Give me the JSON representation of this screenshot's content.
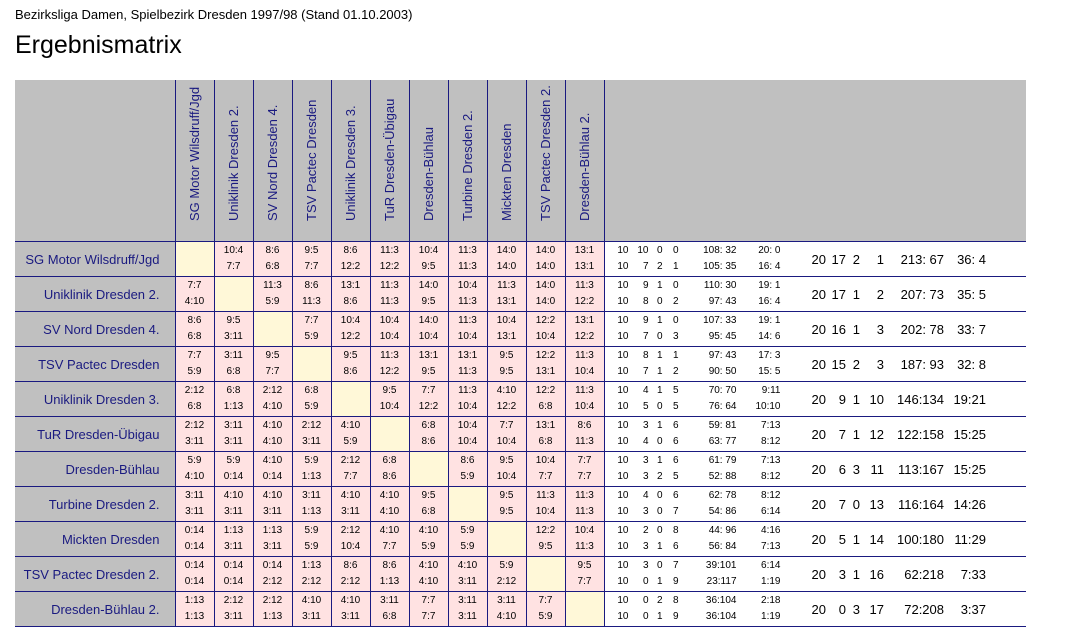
{
  "header": {
    "subtitle": "Bezirksliga Damen, Spielbezirk Dresden 1997/98 (Stand 01.10.2003)",
    "title": "Ergebnismatrix"
  },
  "columns": [
    "SG Motor Wilsdruff/Jgd",
    "Uniklinik Dresden 2.",
    "SV Nord Dresden 4.",
    "TSV Pactec Dresden",
    "Uniklinik Dresden 3.",
    "TuR Dresden-Übigau",
    "Dresden-Bühlau",
    "Turbine Dresden 2.",
    "Mickten Dresden",
    "TSV Pactec Dresden 2.",
    "Dresden-Bühlau 2."
  ],
  "colors": {
    "header_bg": "#c0c0c0",
    "team_text": "#1a1a80",
    "home_away_cell": "#ffe2e2",
    "diagonal_cell": "#fff8d8"
  },
  "rows": [
    {
      "team": "SG Motor Wilsdruff/Jgd",
      "cells": [
        [
          "",
          ""
        ],
        [
          "10:4",
          "7:7"
        ],
        [
          "8:6",
          "6:8"
        ],
        [
          "9:5",
          "7:7"
        ],
        [
          "8:6",
          "12:2"
        ],
        [
          "11:3",
          "12:2"
        ],
        [
          "10:4",
          "9:5"
        ],
        [
          "11:3",
          "11:3"
        ],
        [
          "14:0",
          "14:0"
        ],
        [
          "14:0",
          "14:0"
        ],
        [
          "13:1",
          "13:1"
        ]
      ],
      "split": [
        [
          "10",
          "10",
          "0",
          "0",
          "108: 32",
          "20: 0"
        ],
        [
          "10",
          "7",
          "2",
          "1",
          "105: 35",
          "16: 4"
        ]
      ],
      "total": [
        "20",
        "17",
        "2",
        "1",
        "213: 67",
        "36: 4"
      ]
    },
    {
      "team": "Uniklinik Dresden 2.",
      "cells": [
        [
          "7:7",
          "4:10"
        ],
        [
          "",
          ""
        ],
        [
          "11:3",
          "5:9"
        ],
        [
          "8:6",
          "11:3"
        ],
        [
          "13:1",
          "8:6"
        ],
        [
          "11:3",
          "11:3"
        ],
        [
          "14:0",
          "9:5"
        ],
        [
          "10:4",
          "11:3"
        ],
        [
          "11:3",
          "13:1"
        ],
        [
          "14:0",
          "14:0"
        ],
        [
          "11:3",
          "12:2"
        ]
      ],
      "split": [
        [
          "10",
          "9",
          "1",
          "0",
          "110: 30",
          "19: 1"
        ],
        [
          "10",
          "8",
          "0",
          "2",
          "97: 43",
          "16: 4"
        ]
      ],
      "total": [
        "20",
        "17",
        "1",
        "2",
        "207: 73",
        "35: 5"
      ]
    },
    {
      "team": "SV Nord Dresden 4.",
      "cells": [
        [
          "8:6",
          "6:8"
        ],
        [
          "9:5",
          "3:11"
        ],
        [
          "",
          ""
        ],
        [
          "7:7",
          "5:9"
        ],
        [
          "10:4",
          "12:2"
        ],
        [
          "10:4",
          "10:4"
        ],
        [
          "14:0",
          "10:4"
        ],
        [
          "11:3",
          "10:4"
        ],
        [
          "10:4",
          "13:1"
        ],
        [
          "12:2",
          "10:4"
        ],
        [
          "13:1",
          "12:2"
        ]
      ],
      "split": [
        [
          "10",
          "9",
          "1",
          "0",
          "107: 33",
          "19: 1"
        ],
        [
          "10",
          "7",
          "0",
          "3",
          "95: 45",
          "14: 6"
        ]
      ],
      "total": [
        "20",
        "16",
        "1",
        "3",
        "202: 78",
        "33: 7"
      ]
    },
    {
      "team": "TSV Pactec Dresden",
      "cells": [
        [
          "7:7",
          "5:9"
        ],
        [
          "3:11",
          "6:8"
        ],
        [
          "9:5",
          "7:7"
        ],
        [
          "",
          ""
        ],
        [
          "9:5",
          "8:6"
        ],
        [
          "11:3",
          "12:2"
        ],
        [
          "13:1",
          "9:5"
        ],
        [
          "13:1",
          "11:3"
        ],
        [
          "9:5",
          "9:5"
        ],
        [
          "12:2",
          "13:1"
        ],
        [
          "11:3",
          "10:4"
        ]
      ],
      "split": [
        [
          "10",
          "8",
          "1",
          "1",
          "97: 43",
          "17: 3"
        ],
        [
          "10",
          "7",
          "1",
          "2",
          "90: 50",
          "15: 5"
        ]
      ],
      "total": [
        "20",
        "15",
        "2",
        "3",
        "187: 93",
        "32: 8"
      ]
    },
    {
      "team": "Uniklinik Dresden 3.",
      "cells": [
        [
          "2:12",
          "6:8"
        ],
        [
          "6:8",
          "1:13"
        ],
        [
          "2:12",
          "4:10"
        ],
        [
          "6:8",
          "5:9"
        ],
        [
          "",
          ""
        ],
        [
          "9:5",
          "10:4"
        ],
        [
          "7:7",
          "12:2"
        ],
        [
          "11:3",
          "10:4"
        ],
        [
          "4:10",
          "12:2"
        ],
        [
          "12:2",
          "6:8"
        ],
        [
          "11:3",
          "10:4"
        ]
      ],
      "split": [
        [
          "10",
          "4",
          "1",
          "5",
          "70: 70",
          "9:11"
        ],
        [
          "10",
          "5",
          "0",
          "5",
          "76: 64",
          "10:10"
        ]
      ],
      "total": [
        "20",
        "9",
        "1",
        "10",
        "146:134",
        "19:21"
      ]
    },
    {
      "team": "TuR Dresden-Übigau",
      "cells": [
        [
          "2:12",
          "3:11"
        ],
        [
          "3:11",
          "3:11"
        ],
        [
          "4:10",
          "4:10"
        ],
        [
          "2:12",
          "3:11"
        ],
        [
          "4:10",
          "5:9"
        ],
        [
          "",
          ""
        ],
        [
          "6:8",
          "8:6"
        ],
        [
          "10:4",
          "10:4"
        ],
        [
          "7:7",
          "10:4"
        ],
        [
          "13:1",
          "6:8"
        ],
        [
          "8:6",
          "11:3"
        ]
      ],
      "split": [
        [
          "10",
          "3",
          "1",
          "6",
          "59: 81",
          "7:13"
        ],
        [
          "10",
          "4",
          "0",
          "6",
          "63: 77",
          "8:12"
        ]
      ],
      "total": [
        "20",
        "7",
        "1",
        "12",
        "122:158",
        "15:25"
      ]
    },
    {
      "team": "Dresden-Bühlau",
      "cells": [
        [
          "5:9",
          "4:10"
        ],
        [
          "5:9",
          "0:14"
        ],
        [
          "4:10",
          "0:14"
        ],
        [
          "5:9",
          "1:13"
        ],
        [
          "2:12",
          "7:7"
        ],
        [
          "6:8",
          "8:6"
        ],
        [
          "",
          ""
        ],
        [
          "8:6",
          "5:9"
        ],
        [
          "9:5",
          "10:4"
        ],
        [
          "10:4",
          "7:7"
        ],
        [
          "7:7",
          "7:7"
        ]
      ],
      "split": [
        [
          "10",
          "3",
          "1",
          "6",
          "61: 79",
          "7:13"
        ],
        [
          "10",
          "3",
          "2",
          "5",
          "52: 88",
          "8:12"
        ]
      ],
      "total": [
        "20",
        "6",
        "3",
        "11",
        "113:167",
        "15:25"
      ]
    },
    {
      "team": "Turbine Dresden 2.",
      "cells": [
        [
          "3:11",
          "3:11"
        ],
        [
          "4:10",
          "3:11"
        ],
        [
          "4:10",
          "3:11"
        ],
        [
          "3:11",
          "1:13"
        ],
        [
          "4:10",
          "3:11"
        ],
        [
          "4:10",
          "4:10"
        ],
        [
          "9:5",
          "6:8"
        ],
        [
          "",
          ""
        ],
        [
          "9:5",
          "9:5"
        ],
        [
          "11:3",
          "10:4"
        ],
        [
          "11:3",
          "11:3"
        ]
      ],
      "split": [
        [
          "10",
          "4",
          "0",
          "6",
          "62: 78",
          "8:12"
        ],
        [
          "10",
          "3",
          "0",
          "7",
          "54: 86",
          "6:14"
        ]
      ],
      "total": [
        "20",
        "7",
        "0",
        "13",
        "116:164",
        "14:26"
      ]
    },
    {
      "team": "Mickten Dresden",
      "cells": [
        [
          "0:14",
          "0:14"
        ],
        [
          "1:13",
          "3:11"
        ],
        [
          "1:13",
          "3:11"
        ],
        [
          "5:9",
          "5:9"
        ],
        [
          "2:12",
          "10:4"
        ],
        [
          "4:10",
          "7:7"
        ],
        [
          "4:10",
          "5:9"
        ],
        [
          "5:9",
          "5:9"
        ],
        [
          "",
          ""
        ],
        [
          "12:2",
          "9:5"
        ],
        [
          "10:4",
          "11:3"
        ]
      ],
      "split": [
        [
          "10",
          "2",
          "0",
          "8",
          "44: 96",
          "4:16"
        ],
        [
          "10",
          "3",
          "1",
          "6",
          "56: 84",
          "7:13"
        ]
      ],
      "total": [
        "20",
        "5",
        "1",
        "14",
        "100:180",
        "11:29"
      ]
    },
    {
      "team": "TSV Pactec Dresden 2.",
      "cells": [
        [
          "0:14",
          "0:14"
        ],
        [
          "0:14",
          "0:14"
        ],
        [
          "0:14",
          "2:12"
        ],
        [
          "1:13",
          "2:12"
        ],
        [
          "8:6",
          "2:12"
        ],
        [
          "8:6",
          "1:13"
        ],
        [
          "4:10",
          "4:10"
        ],
        [
          "4:10",
          "3:11"
        ],
        [
          "5:9",
          "2:12"
        ],
        [
          "",
          ""
        ],
        [
          "9:5",
          "7:7"
        ]
      ],
      "split": [
        [
          "10",
          "3",
          "0",
          "7",
          "39:101",
          "6:14"
        ],
        [
          "10",
          "0",
          "1",
          "9",
          "23:117",
          "1:19"
        ]
      ],
      "total": [
        "20",
        "3",
        "1",
        "16",
        "62:218",
        "7:33"
      ]
    },
    {
      "team": "Dresden-Bühlau 2.",
      "cells": [
        [
          "1:13",
          "1:13"
        ],
        [
          "2:12",
          "3:11"
        ],
        [
          "2:12",
          "1:13"
        ],
        [
          "4:10",
          "3:11"
        ],
        [
          "4:10",
          "3:11"
        ],
        [
          "3:11",
          "6:8"
        ],
        [
          "7:7",
          "7:7"
        ],
        [
          "3:11",
          "3:11"
        ],
        [
          "3:11",
          "4:10"
        ],
        [
          "7:7",
          "5:9"
        ],
        [
          "",
          ""
        ]
      ],
      "split": [
        [
          "10",
          "0",
          "2",
          "8",
          "36:104",
          "2:18"
        ],
        [
          "10",
          "0",
          "1",
          "9",
          "36:104",
          "1:19"
        ]
      ],
      "total": [
        "20",
        "0",
        "3",
        "17",
        "72:208",
        "3:37"
      ]
    }
  ]
}
